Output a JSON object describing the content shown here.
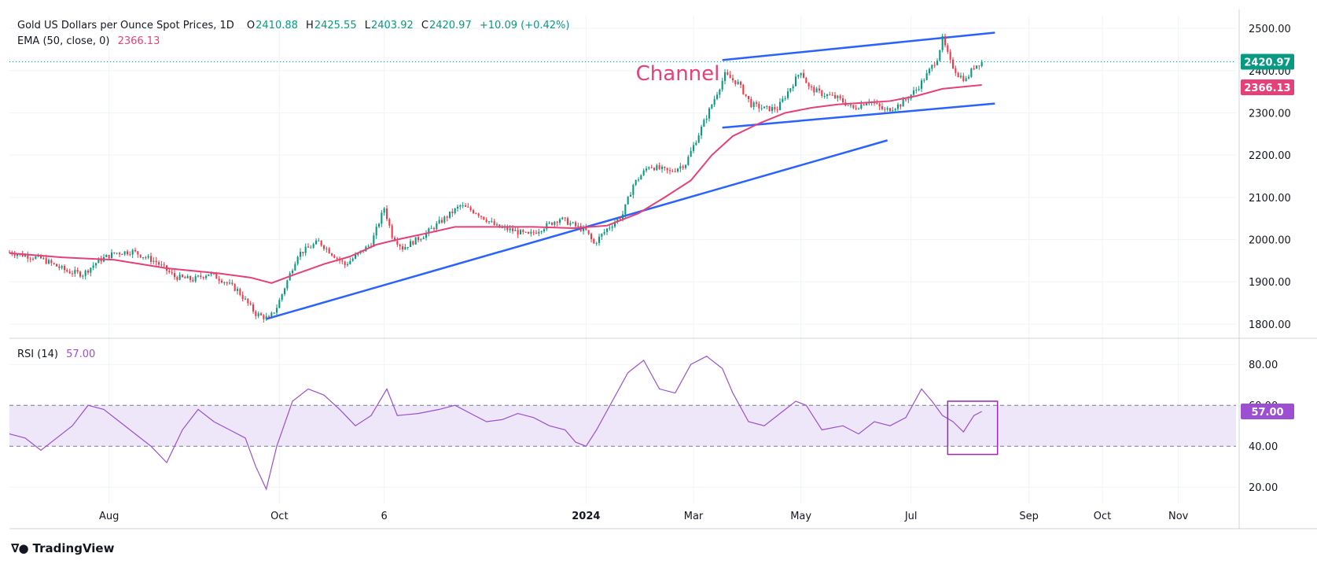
{
  "legend": {
    "symbol": "Gold US Dollars per Ounce Spot Prices, 1D",
    "open_label": "O",
    "open": "2410.88",
    "high_label": "H",
    "high": "2425.55",
    "low_label": "L",
    "low": "2403.92",
    "close_label": "C",
    "close": "2420.97",
    "change": "+10.09 (+0.42%)",
    "ema_label": "EMA (50, close, 0)",
    "ema_value": "2366.13",
    "rsi_label": "RSI (14)",
    "rsi_value": "57.00"
  },
  "colors": {
    "up": "#089981",
    "down": "#f23645",
    "ema": "#e64079",
    "trend": "#2962ff",
    "rsi": "#9c4fd0",
    "rsi_band": "#ede7f9",
    "axis_text": "#131722"
  },
  "branding": {
    "logo_icon": "tradingview-logo-icon",
    "name": "TradingView"
  },
  "chart_data": [
    {
      "type": "candlestick",
      "title": "Gold US Dollars per Ounce Spot Prices, 1D",
      "ylim": [
        1770,
        2530
      ],
      "y_ticks": [
        "1800.00",
        "1900.00",
        "2000.00",
        "2100.00",
        "2200.00",
        "2300.00",
        "2400.00",
        "2500.00"
      ],
      "x_ticks": [
        "Aug",
        "Oct",
        "6",
        "2024",
        "Mar",
        "May",
        "Jul",
        "Sep",
        "Oct",
        "Nov"
      ],
      "grid": true,
      "last_price": "2420.97",
      "ema_label": "2366.13",
      "annotation": "Channel",
      "price_path": [
        [
          0,
          1970
        ],
        [
          12,
          1955
        ],
        [
          22,
          1925
        ],
        [
          28,
          1918
        ],
        [
          34,
          1950
        ],
        [
          40,
          1968
        ],
        [
          47,
          1972
        ],
        [
          56,
          1947
        ],
        [
          63,
          1912
        ],
        [
          70,
          1905
        ],
        [
          76,
          1920
        ],
        [
          81,
          1905
        ],
        [
          87,
          1880
        ],
        [
          94,
          1824
        ],
        [
          99,
          1812
        ],
        [
          102,
          1840
        ],
        [
          110,
          1965
        ],
        [
          118,
          1995
        ],
        [
          128,
          1940
        ],
        [
          138,
          1990
        ],
        [
          143,
          2075
        ],
        [
          146,
          2010
        ],
        [
          150,
          1980
        ],
        [
          158,
          2010
        ],
        [
          166,
          2050
        ],
        [
          172,
          2080
        ],
        [
          178,
          2065
        ],
        [
          186,
          2030
        ],
        [
          193,
          2020
        ],
        [
          198,
          2010
        ],
        [
          204,
          2030
        ],
        [
          210,
          2050
        ],
        [
          215,
          2035
        ],
        [
          220,
          2020
        ],
        [
          223,
          1990
        ],
        [
          228,
          2025
        ],
        [
          234,
          2060
        ],
        [
          238,
          2130
        ],
        [
          244,
          2175
        ],
        [
          252,
          2160
        ],
        [
          258,
          2180
        ],
        [
          263,
          2250
        ],
        [
          268,
          2320
        ],
        [
          273,
          2390
        ],
        [
          278,
          2370
        ],
        [
          283,
          2320
        ],
        [
          288,
          2310
        ],
        [
          293,
          2310
        ],
        [
          298,
          2360
        ],
        [
          302,
          2400
        ],
        [
          305,
          2360
        ],
        [
          310,
          2345
        ],
        [
          316,
          2335
        ],
        [
          322,
          2310
        ],
        [
          328,
          2330
        ],
        [
          334,
          2305
        ],
        [
          340,
          2320
        ],
        [
          346,
          2355
        ],
        [
          350,
          2390
        ],
        [
          354,
          2430
        ],
        [
          356,
          2475
        ],
        [
          359,
          2420
        ],
        [
          362,
          2390
        ],
        [
          365,
          2378
        ],
        [
          368,
          2410
        ],
        [
          371,
          2420.97
        ]
      ],
      "ema_path": [
        [
          0,
          1968
        ],
        [
          20,
          1958
        ],
        [
          40,
          1952
        ],
        [
          60,
          1932
        ],
        [
          80,
          1920
        ],
        [
          92,
          1910
        ],
        [
          100,
          1897
        ],
        [
          110,
          1920
        ],
        [
          120,
          1942
        ],
        [
          130,
          1960
        ],
        [
          140,
          1988
        ],
        [
          148,
          2000
        ],
        [
          160,
          2016
        ],
        [
          170,
          2030
        ],
        [
          185,
          2030
        ],
        [
          200,
          2030
        ],
        [
          215,
          2027
        ],
        [
          228,
          2033
        ],
        [
          240,
          2062
        ],
        [
          250,
          2100
        ],
        [
          260,
          2140
        ],
        [
          268,
          2200
        ],
        [
          276,
          2245
        ],
        [
          286,
          2275
        ],
        [
          296,
          2300
        ],
        [
          306,
          2312
        ],
        [
          316,
          2320
        ],
        [
          326,
          2324
        ],
        [
          336,
          2328
        ],
        [
          346,
          2340
        ],
        [
          356,
          2357
        ],
        [
          371,
          2366.13
        ]
      ],
      "trend_lines": [
        {
          "name": "support",
          "from": [
            98,
            1812
          ],
          "to": [
            335,
            2235
          ]
        },
        {
          "name": "channel-upper",
          "from": [
            272,
            2425
          ],
          "to": [
            376,
            2490
          ]
        },
        {
          "name": "channel-lower",
          "from": [
            272,
            2265
          ],
          "to": [
            376,
            2322
          ]
        }
      ]
    },
    {
      "type": "line",
      "title": "RSI (14)",
      "ylim": [
        12,
        92
      ],
      "y_ticks": [
        "20.00",
        "40.00",
        "60.00",
        "80.00"
      ],
      "band": [
        40,
        60
      ],
      "last_value": "57.00",
      "values_path": [
        [
          0,
          46
        ],
        [
          6,
          44
        ],
        [
          12,
          38
        ],
        [
          18,
          44
        ],
        [
          24,
          50
        ],
        [
          30,
          60
        ],
        [
          36,
          58
        ],
        [
          42,
          52
        ],
        [
          48,
          46
        ],
        [
          54,
          40
        ],
        [
          60,
          32
        ],
        [
          66,
          48
        ],
        [
          72,
          58
        ],
        [
          78,
          52
        ],
        [
          84,
          48
        ],
        [
          90,
          44
        ],
        [
          94,
          30
        ],
        [
          98,
          19
        ],
        [
          102,
          40
        ],
        [
          108,
          62
        ],
        [
          114,
          68
        ],
        [
          120,
          65
        ],
        [
          126,
          58
        ],
        [
          132,
          50
        ],
        [
          138,
          55
        ],
        [
          144,
          68
        ],
        [
          148,
          55
        ],
        [
          156,
          56
        ],
        [
          164,
          58
        ],
        [
          170,
          60
        ],
        [
          176,
          56
        ],
        [
          182,
          52
        ],
        [
          188,
          53
        ],
        [
          194,
          56
        ],
        [
          200,
          54
        ],
        [
          206,
          50
        ],
        [
          212,
          48
        ],
        [
          216,
          42
        ],
        [
          220,
          40
        ],
        [
          224,
          48
        ],
        [
          230,
          62
        ],
        [
          236,
          76
        ],
        [
          242,
          82
        ],
        [
          248,
          68
        ],
        [
          254,
          66
        ],
        [
          260,
          80
        ],
        [
          266,
          84
        ],
        [
          272,
          78
        ],
        [
          276,
          66
        ],
        [
          282,
          52
        ],
        [
          288,
          50
        ],
        [
          294,
          56
        ],
        [
          300,
          62
        ],
        [
          304,
          60
        ],
        [
          310,
          48
        ],
        [
          318,
          50
        ],
        [
          324,
          46
        ],
        [
          330,
          52
        ],
        [
          336,
          50
        ],
        [
          342,
          54
        ],
        [
          348,
          68
        ],
        [
          352,
          62
        ],
        [
          356,
          55
        ],
        [
          360,
          52
        ],
        [
          364,
          47
        ],
        [
          368,
          55
        ],
        [
          371,
          57
        ]
      ],
      "highlight_box": {
        "x_from": 358,
        "x_to": 377,
        "y_from": 36,
        "y_to": 62
      }
    }
  ]
}
